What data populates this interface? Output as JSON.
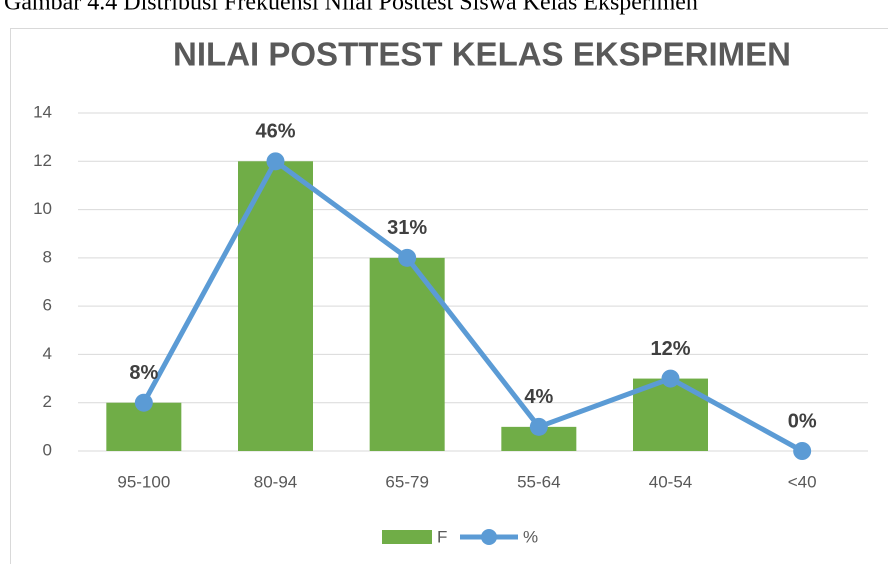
{
  "caption": "Gambar 4.4 Distribusi Frekuensi Nilai Posttest Siswa Kelas Eksperimen",
  "chart_data": {
    "type": "bar",
    "title": "NILAI POSTTEST KELAS EKSPERIMEN",
    "categories": [
      "95-100",
      "80-94",
      "65-79",
      "55-64",
      "40-54",
      "<40"
    ],
    "series": [
      {
        "name": "F",
        "type": "bar",
        "color": "#70ad47",
        "values": [
          2,
          12,
          8,
          1,
          3,
          0
        ]
      },
      {
        "name": "%",
        "type": "line",
        "axis": "y2",
        "color": "#5b9bd5",
        "values": [
          7.69,
          46.15,
          30.77,
          3.85,
          11.54,
          0
        ],
        "value_labels": [
          "8%",
          "46%",
          "31%",
          "4%",
          "12%",
          "0%"
        ]
      }
    ],
    "ylim": [
      0,
      14
    ],
    "yticks": [
      0,
      2,
      4,
      6,
      8,
      10,
      12,
      14
    ],
    "y2lim": [
      0,
      53.85
    ],
    "grid": true,
    "legend": "bottom"
  }
}
